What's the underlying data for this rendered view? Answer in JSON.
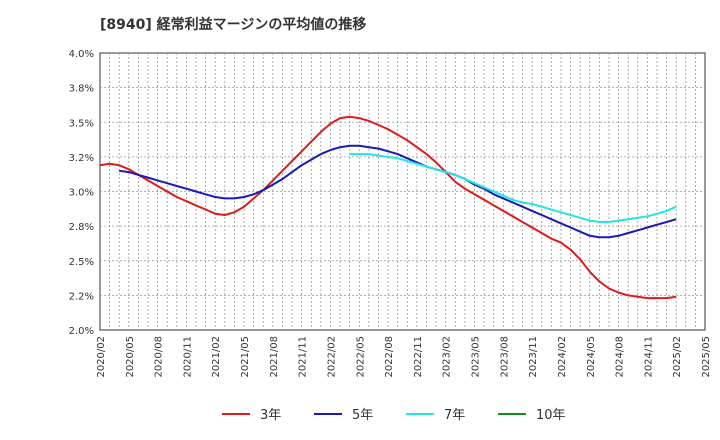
{
  "chart_data": {
    "type": "line",
    "title": "[8940]  経常利益マージンの平均値の推移",
    "xlabel": "",
    "ylabel": "",
    "ylim": [
      2.0,
      4.0
    ],
    "y_ticks": [
      "4.0%",
      "3.8%",
      "3.5%",
      "3.2%",
      "3.0%",
      "2.8%",
      "2.5%",
      "2.2%",
      "2.0%"
    ],
    "x_ticks": [
      "2020/02",
      "2020/05",
      "2020/08",
      "2020/11",
      "2021/02",
      "2021/05",
      "2021/08",
      "2021/11",
      "2022/02",
      "2022/05",
      "2022/08",
      "2022/11",
      "2023/02",
      "2023/05",
      "2023/08",
      "2023/11",
      "2024/02",
      "2024/05",
      "2024/08",
      "2024/11",
      "2025/02",
      "2025/05"
    ],
    "grid": true,
    "legend_position": "bottom",
    "series": [
      {
        "name": "3年",
        "color": "#dd1c1c",
        "points": [
          [
            "2020/02",
            3.19
          ],
          [
            "2020/03",
            3.2
          ],
          [
            "2020/04",
            3.19
          ],
          [
            "2020/05",
            3.16
          ],
          [
            "2020/06",
            3.12
          ],
          [
            "2020/07",
            3.08
          ],
          [
            "2020/08",
            3.04
          ],
          [
            "2020/09",
            3.0
          ],
          [
            "2020/10",
            2.96
          ],
          [
            "2020/11",
            2.93
          ],
          [
            "2020/12",
            2.9
          ],
          [
            "2021/01",
            2.87
          ],
          [
            "2021/02",
            2.84
          ],
          [
            "2021/03",
            2.83
          ],
          [
            "2021/04",
            2.85
          ],
          [
            "2021/05",
            2.89
          ],
          [
            "2021/06",
            2.95
          ],
          [
            "2021/07",
            3.01
          ],
          [
            "2021/08",
            3.08
          ],
          [
            "2021/09",
            3.15
          ],
          [
            "2021/10",
            3.22
          ],
          [
            "2021/11",
            3.29
          ],
          [
            "2021/12",
            3.36
          ],
          [
            "2022/01",
            3.43
          ],
          [
            "2022/02",
            3.49
          ],
          [
            "2022/03",
            3.53
          ],
          [
            "2022/04",
            3.54
          ],
          [
            "2022/05",
            3.53
          ],
          [
            "2022/06",
            3.51
          ],
          [
            "2022/07",
            3.48
          ],
          [
            "2022/08",
            3.45
          ],
          [
            "2022/09",
            3.41
          ],
          [
            "2022/10",
            3.37
          ],
          [
            "2022/11",
            3.32
          ],
          [
            "2022/12",
            3.27
          ],
          [
            "2023/01",
            3.21
          ],
          [
            "2023/02",
            3.14
          ],
          [
            "2023/03",
            3.07
          ],
          [
            "2023/04",
            3.02
          ],
          [
            "2023/05",
            2.98
          ],
          [
            "2023/06",
            2.94
          ],
          [
            "2023/07",
            2.9
          ],
          [
            "2023/08",
            2.86
          ],
          [
            "2023/09",
            2.82
          ],
          [
            "2023/10",
            2.78
          ],
          [
            "2023/11",
            2.74
          ],
          [
            "2023/12",
            2.7
          ],
          [
            "2024/01",
            2.66
          ],
          [
            "2024/02",
            2.63
          ],
          [
            "2024/03",
            2.58
          ],
          [
            "2024/04",
            2.51
          ],
          [
            "2024/05",
            2.42
          ],
          [
            "2024/06",
            2.35
          ],
          [
            "2024/07",
            2.3
          ],
          [
            "2024/08",
            2.27
          ],
          [
            "2024/09",
            2.25
          ],
          [
            "2024/10",
            2.24
          ],
          [
            "2024/11",
            2.23
          ],
          [
            "2024/12",
            2.23
          ],
          [
            "2025/01",
            2.23
          ],
          [
            "2025/02",
            2.24
          ]
        ]
      },
      {
        "name": "5年",
        "color": "#1a1ab4",
        "points": [
          [
            "2020/04",
            3.15
          ],
          [
            "2020/05",
            3.14
          ],
          [
            "2020/06",
            3.12
          ],
          [
            "2020/07",
            3.1
          ],
          [
            "2020/08",
            3.08
          ],
          [
            "2020/09",
            3.06
          ],
          [
            "2020/10",
            3.04
          ],
          [
            "2020/11",
            3.02
          ],
          [
            "2020/12",
            3.0
          ],
          [
            "2021/01",
            2.98
          ],
          [
            "2021/02",
            2.96
          ],
          [
            "2021/03",
            2.95
          ],
          [
            "2021/04",
            2.95
          ],
          [
            "2021/05",
            2.96
          ],
          [
            "2021/06",
            2.98
          ],
          [
            "2021/07",
            3.01
          ],
          [
            "2021/08",
            3.05
          ],
          [
            "2021/09",
            3.09
          ],
          [
            "2021/10",
            3.14
          ],
          [
            "2021/11",
            3.19
          ],
          [
            "2021/12",
            3.23
          ],
          [
            "2022/01",
            3.27
          ],
          [
            "2022/02",
            3.3
          ],
          [
            "2022/03",
            3.32
          ],
          [
            "2022/04",
            3.33
          ],
          [
            "2022/05",
            3.33
          ],
          [
            "2022/06",
            3.32
          ],
          [
            "2022/07",
            3.31
          ],
          [
            "2022/08",
            3.29
          ],
          [
            "2022/09",
            3.27
          ],
          [
            "2022/10",
            3.24
          ],
          [
            "2022/11",
            3.21
          ],
          [
            "2022/12",
            3.18
          ],
          [
            "2023/01",
            3.16
          ],
          [
            "2023/02",
            3.14
          ],
          [
            "2023/03",
            3.12
          ],
          [
            "2023/04",
            3.09
          ],
          [
            "2023/05",
            3.05
          ],
          [
            "2023/06",
            3.02
          ],
          [
            "2023/07",
            2.98
          ],
          [
            "2023/08",
            2.95
          ],
          [
            "2023/09",
            2.92
          ],
          [
            "2023/10",
            2.89
          ],
          [
            "2023/11",
            2.86
          ],
          [
            "2023/12",
            2.83
          ],
          [
            "2024/01",
            2.8
          ],
          [
            "2024/02",
            2.77
          ],
          [
            "2024/03",
            2.74
          ],
          [
            "2024/04",
            2.71
          ],
          [
            "2024/05",
            2.68
          ],
          [
            "2024/06",
            2.67
          ],
          [
            "2024/07",
            2.67
          ],
          [
            "2024/08",
            2.68
          ],
          [
            "2024/09",
            2.7
          ],
          [
            "2024/10",
            2.72
          ],
          [
            "2024/11",
            2.74
          ],
          [
            "2024/12",
            2.76
          ],
          [
            "2025/01",
            2.78
          ],
          [
            "2025/02",
            2.8
          ]
        ]
      },
      {
        "name": "7年",
        "color": "#22e6e6",
        "points": [
          [
            "2022/04",
            3.27
          ],
          [
            "2022/05",
            3.27
          ],
          [
            "2022/06",
            3.27
          ],
          [
            "2022/07",
            3.26
          ],
          [
            "2022/08",
            3.25
          ],
          [
            "2022/09",
            3.24
          ],
          [
            "2022/10",
            3.22
          ],
          [
            "2022/11",
            3.2
          ],
          [
            "2022/12",
            3.18
          ],
          [
            "2023/01",
            3.16
          ],
          [
            "2023/02",
            3.14
          ],
          [
            "2023/03",
            3.12
          ],
          [
            "2023/04",
            3.09
          ],
          [
            "2023/05",
            3.06
          ],
          [
            "2023/06",
            3.03
          ],
          [
            "2023/07",
            3.0
          ],
          [
            "2023/08",
            2.97
          ],
          [
            "2023/09",
            2.94
          ],
          [
            "2023/10",
            2.92
          ],
          [
            "2023/11",
            2.91
          ],
          [
            "2023/12",
            2.89
          ],
          [
            "2024/01",
            2.87
          ],
          [
            "2024/02",
            2.85
          ],
          [
            "2024/03",
            2.83
          ],
          [
            "2024/04",
            2.81
          ],
          [
            "2024/05",
            2.79
          ],
          [
            "2024/06",
            2.78
          ],
          [
            "2024/07",
            2.78
          ],
          [
            "2024/08",
            2.79
          ],
          [
            "2024/09",
            2.8
          ],
          [
            "2024/10",
            2.81
          ],
          [
            "2024/11",
            2.82
          ],
          [
            "2024/12",
            2.84
          ],
          [
            "2025/01",
            2.86
          ],
          [
            "2025/02",
            2.89
          ]
        ]
      },
      {
        "name": "10年",
        "color": "#1a8a1a",
        "points": []
      }
    ]
  }
}
